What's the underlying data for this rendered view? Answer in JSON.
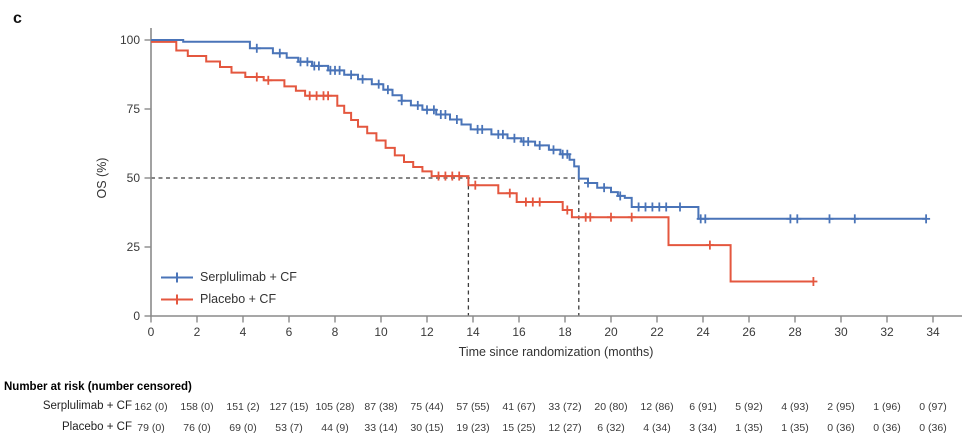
{
  "panel_label": "c",
  "colors": {
    "serplulimab": "#4a74b8",
    "placebo": "#e4573f",
    "median_dash": "#3c3c3c",
    "axis": "#8a8a8a",
    "tick_text": "#3a3a3a"
  },
  "chart_data": {
    "type": "line",
    "variant": "kaplan-meier-step",
    "title": "",
    "xlabel": "Time since randomization (months)",
    "ylabel": "OS (%)",
    "xlim": [
      0,
      35.3
    ],
    "ylim": [
      0,
      100
    ],
    "x_ticks": [
      0,
      2,
      4,
      6,
      8,
      10,
      12,
      14,
      16,
      18,
      20,
      22,
      24,
      26,
      28,
      30,
      32,
      34
    ],
    "y_ticks": [
      0,
      25,
      50,
      75,
      100
    ],
    "grid": false,
    "legend_position": "inside-bottom-left",
    "median_markers": {
      "y_percent": 50,
      "x_months": [
        13.8,
        18.6
      ]
    },
    "series": [
      {
        "name": "Serplulimab + CF",
        "color": "#4a74b8",
        "points": [
          [
            0,
            100
          ],
          [
            1.4,
            99.4
          ],
          [
            4.3,
            97.0
          ],
          [
            5.3,
            95.2
          ],
          [
            5.9,
            93.6
          ],
          [
            6.4,
            92.1
          ],
          [
            7.0,
            90.6
          ],
          [
            7.7,
            89.0
          ],
          [
            8.4,
            87.4
          ],
          [
            9.0,
            85.8
          ],
          [
            9.6,
            84.0
          ],
          [
            10.1,
            82.0
          ],
          [
            10.5,
            80.0
          ],
          [
            10.9,
            78.0
          ],
          [
            11.3,
            76.3
          ],
          [
            11.8,
            74.7
          ],
          [
            12.4,
            73.0
          ],
          [
            13.0,
            71.2
          ],
          [
            13.5,
            69.4
          ],
          [
            13.9,
            67.6
          ],
          [
            14.8,
            65.8
          ],
          [
            15.5,
            64.4
          ],
          [
            16.1,
            63.2
          ],
          [
            16.7,
            61.8
          ],
          [
            17.3,
            60.2
          ],
          [
            17.8,
            58.6
          ],
          [
            18.2,
            56.6
          ],
          [
            18.4,
            54.2
          ],
          [
            18.6,
            49.8
          ],
          [
            19.0,
            48.2
          ],
          [
            19.4,
            46.5
          ],
          [
            20.0,
            44.9
          ],
          [
            20.3,
            43.5
          ],
          [
            20.6,
            42.8
          ],
          [
            20.9,
            39.5
          ],
          [
            23.8,
            35.2
          ],
          [
            33.7,
            35.2
          ]
        ],
        "censor_times": [
          4.6,
          5.6,
          6.5,
          6.8,
          7.1,
          7.3,
          7.8,
          8.0,
          8.2,
          8.7,
          9.2,
          9.9,
          10.3,
          10.9,
          11.6,
          12.0,
          12.3,
          12.6,
          12.8,
          13.3,
          14.2,
          14.4,
          15.1,
          15.3,
          15.8,
          16.2,
          16.4,
          16.9,
          17.5,
          17.9,
          18.1,
          19.0,
          19.7,
          20.4,
          21.2,
          21.5,
          21.8,
          22.1,
          22.4,
          23.0,
          23.9,
          24.1,
          27.8,
          28.1,
          29.5,
          30.6,
          33.7
        ]
      },
      {
        "name": "Placebo + CF",
        "color": "#e4573f",
        "points": [
          [
            0,
            99.3
          ],
          [
            1.1,
            96.2
          ],
          [
            1.6,
            94.2
          ],
          [
            2.4,
            92.2
          ],
          [
            3.0,
            90.2
          ],
          [
            3.5,
            88.2
          ],
          [
            4.1,
            86.6
          ],
          [
            4.9,
            85.4
          ],
          [
            5.8,
            83.2
          ],
          [
            6.3,
            81.6
          ],
          [
            6.7,
            79.8
          ],
          [
            8.1,
            76.2
          ],
          [
            8.4,
            73.6
          ],
          [
            8.7,
            71.0
          ],
          [
            9.0,
            68.6
          ],
          [
            9.4,
            66.2
          ],
          [
            9.8,
            63.6
          ],
          [
            10.2,
            60.9
          ],
          [
            10.6,
            58.2
          ],
          [
            11.0,
            55.8
          ],
          [
            11.4,
            54.0
          ],
          [
            11.8,
            52.4
          ],
          [
            12.2,
            50.7
          ],
          [
            13.8,
            47.4
          ],
          [
            15.1,
            44.5
          ],
          [
            15.9,
            41.3
          ],
          [
            17.9,
            38.4
          ],
          [
            18.3,
            35.8
          ],
          [
            22.5,
            25.7
          ],
          [
            25.2,
            12.5
          ],
          [
            28.8,
            12.5
          ]
        ],
        "censor_times": [
          4.6,
          5.1,
          6.9,
          7.2,
          7.5,
          7.7,
          12.5,
          12.8,
          13.1,
          13.4,
          14.1,
          15.6,
          16.3,
          16.6,
          16.9,
          18.1,
          18.9,
          19.1,
          20.0,
          20.9,
          24.3,
          28.8
        ]
      }
    ]
  },
  "risk_table": {
    "header": "Number at risk (number censored)",
    "time_points": [
      0,
      2,
      4,
      6,
      8,
      10,
      12,
      14,
      16,
      18,
      20,
      22,
      24,
      26,
      28,
      30,
      32,
      34
    ],
    "rows": [
      {
        "label": "Serplulimab + CF",
        "values": [
          "162 (0)",
          "158 (0)",
          "151 (2)",
          "127 (15)",
          "105 (28)",
          "87 (38)",
          "75 (44)",
          "57 (55)",
          "41 (67)",
          "33 (72)",
          "20 (80)",
          "12 (86)",
          "6 (91)",
          "5 (92)",
          "4 (93)",
          "2 (95)",
          "1 (96)",
          "0 (97)"
        ]
      },
      {
        "label": "Placebo + CF",
        "values": [
          "79 (0)",
          "76 (0)",
          "69 (0)",
          "53 (7)",
          "44 (9)",
          "33 (14)",
          "30 (15)",
          "19 (23)",
          "15 (25)",
          "12 (27)",
          "6 (32)",
          "4 (34)",
          "3 (34)",
          "1 (35)",
          "1 (35)",
          "0 (36)",
          "0 (36)",
          "0 (36)"
        ]
      }
    ]
  }
}
